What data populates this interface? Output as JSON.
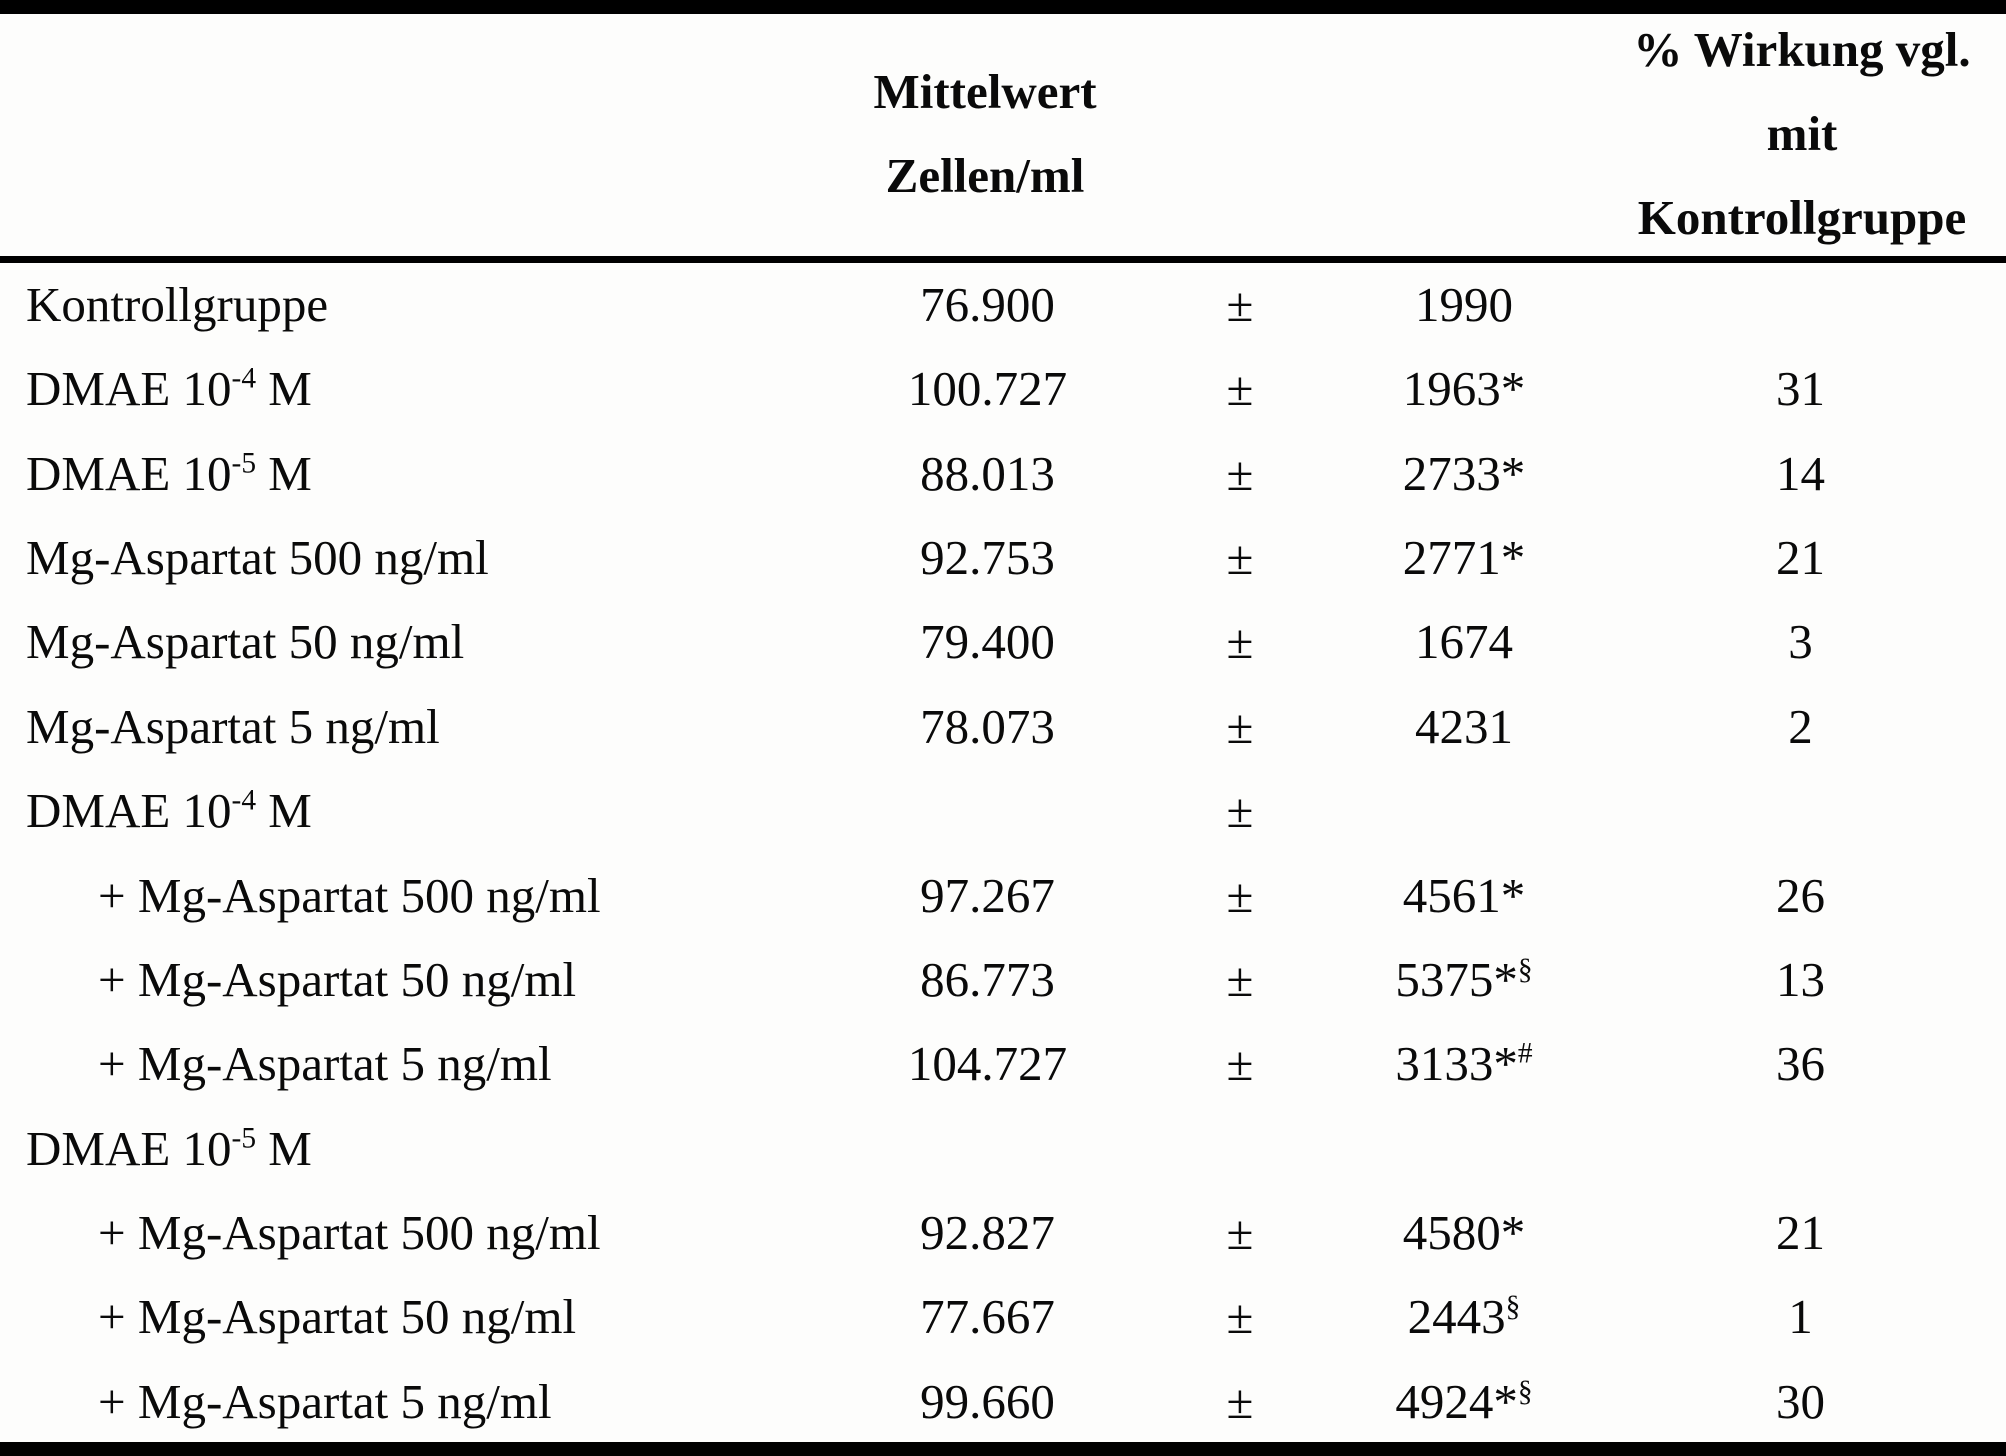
{
  "header": {
    "mean_line1": "Mittelwert",
    "mean_line2": "Zellen/ml",
    "pct_line1": "% Wirkung vgl.",
    "pct_line2": "mit",
    "pct_line3": "Kontrollgruppe"
  },
  "colors": {
    "background": "#fdfdfc",
    "text": "#0a0a0a",
    "rule": "#000000"
  },
  "table": {
    "rows": [
      {
        "label": "Kontrollgruppe",
        "label_sup": "",
        "label_after": "",
        "indent": false,
        "mean": "76.900",
        "pm": "±",
        "sd": "1990",
        "sd_sup": "",
        "pct": ""
      },
      {
        "label": "DMAE 10",
        "label_sup": "-4",
        "label_after": " M",
        "indent": false,
        "mean": "100.727",
        "pm": "±",
        "sd": "1963*",
        "sd_sup": "",
        "pct": "31"
      },
      {
        "label": "DMAE 10",
        "label_sup": "-5",
        "label_after": " M",
        "indent": false,
        "mean": "88.013",
        "pm": "±",
        "sd": "2733*",
        "sd_sup": "",
        "pct": "14"
      },
      {
        "label": "Mg-Aspartat 500 ng/ml",
        "label_sup": "",
        "label_after": "",
        "indent": false,
        "mean": "92.753",
        "pm": "±",
        "sd": "2771*",
        "sd_sup": "",
        "pct": "21"
      },
      {
        "label": "Mg-Aspartat 50 ng/ml",
        "label_sup": "",
        "label_after": "",
        "indent": false,
        "mean": "79.400",
        "pm": "±",
        "sd": "1674",
        "sd_sup": "",
        "pct": "3"
      },
      {
        "label": "Mg-Aspartat 5 ng/ml",
        "label_sup": "",
        "label_after": "",
        "indent": false,
        "mean": "78.073",
        "pm": "±",
        "sd": "4231",
        "sd_sup": "",
        "pct": "2"
      },
      {
        "label": "DMAE 10",
        "label_sup": "-4",
        "label_after": " M",
        "indent": false,
        "mean": "",
        "pm": "±",
        "sd": "",
        "sd_sup": "",
        "pct": ""
      },
      {
        "label": "+ Mg-Aspartat 500 ng/ml",
        "label_sup": "",
        "label_after": "",
        "indent": true,
        "mean": "97.267",
        "pm": "±",
        "sd": "4561*",
        "sd_sup": "",
        "pct": "26"
      },
      {
        "label": "+ Mg-Aspartat 50 ng/ml",
        "label_sup": "",
        "label_after": "",
        "indent": true,
        "mean": "86.773",
        "pm": "±",
        "sd": "5375*",
        "sd_sup": "§",
        "pct": "13"
      },
      {
        "label": "+ Mg-Aspartat 5 ng/ml",
        "label_sup": "",
        "label_after": "",
        "indent": true,
        "mean": "104.727",
        "pm": "±",
        "sd": "3133*",
        "sd_sup": "#",
        "pct": "36"
      },
      {
        "label": "DMAE 10",
        "label_sup": "-5",
        "label_after": " M",
        "indent": false,
        "mean": "",
        "pm": "",
        "sd": "",
        "sd_sup": "",
        "pct": ""
      },
      {
        "label": "+ Mg-Aspartat 500 ng/ml",
        "label_sup": "",
        "label_after": "",
        "indent": true,
        "mean": "92.827",
        "pm": "±",
        "sd": "4580*",
        "sd_sup": "",
        "pct": "21"
      },
      {
        "label": "+ Mg-Aspartat 50 ng/ml",
        "label_sup": "",
        "label_after": "",
        "indent": true,
        "mean": "77.667",
        "pm": "±",
        "sd": "2443",
        "sd_sup": "§",
        "pct": "1"
      },
      {
        "label": "+ Mg-Aspartat 5 ng/ml",
        "label_sup": "",
        "label_after": "",
        "indent": true,
        "mean": "99.660",
        "pm": "±",
        "sd": "4924*",
        "sd_sup": "§",
        "pct": "30"
      }
    ]
  }
}
